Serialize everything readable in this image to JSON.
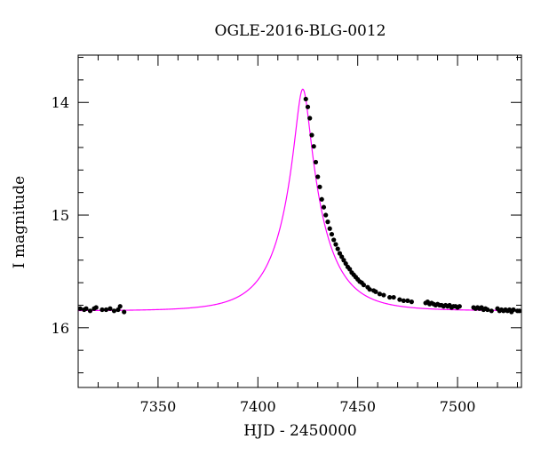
{
  "chart_data": {
    "type": "scatter",
    "title": "OGLE-2016-BLG-0012",
    "xlabel": "HJD - 2450000",
    "ylabel": "I magnitude",
    "xlim": [
      7310,
      7532
    ],
    "ylim": [
      16.53,
      13.58
    ],
    "y_inverted": true,
    "x_major_ticks": [
      7350,
      7400,
      7450,
      7500
    ],
    "x_minor_step": 10,
    "y_major_ticks": [
      14,
      15,
      16
    ],
    "y_minor_step": 0.2,
    "grid": false,
    "point_color": "#000000",
    "model_color": "#ff00ff",
    "model": {
      "t0": 7422.5,
      "tE": 21.0,
      "u0": 0.165,
      "baseline_mag": 15.85,
      "range": [
        7310,
        7532
      ]
    },
    "points": [
      [
        7311,
        15.83
      ],
      [
        7313,
        15.84
      ],
      [
        7314,
        15.83
      ],
      [
        7316,
        15.85
      ],
      [
        7318,
        15.83
      ],
      [
        7319,
        15.82
      ],
      [
        7322,
        15.84
      ],
      [
        7324,
        15.84
      ],
      [
        7326,
        15.83
      ],
      [
        7328,
        15.85
      ],
      [
        7330,
        15.84
      ],
      [
        7331,
        15.81
      ],
      [
        7333,
        15.86
      ],
      [
        7424,
        13.97
      ],
      [
        7425,
        14.04
      ],
      [
        7426,
        14.14
      ],
      [
        7427,
        14.29
      ],
      [
        7428,
        14.39
      ],
      [
        7429,
        14.53
      ],
      [
        7430,
        14.66
      ],
      [
        7431,
        14.75
      ],
      [
        7432,
        14.86
      ],
      [
        7433,
        14.93
      ],
      [
        7434,
        15.0
      ],
      [
        7435,
        15.06
      ],
      [
        7436,
        15.12
      ],
      [
        7437,
        15.17
      ],
      [
        7438,
        15.22
      ],
      [
        7439,
        15.26
      ],
      [
        7440,
        15.3
      ],
      [
        7441,
        15.34
      ],
      [
        7442,
        15.37
      ],
      [
        7443,
        15.4
      ],
      [
        7444,
        15.43
      ],
      [
        7445,
        15.46
      ],
      [
        7446,
        15.48
      ],
      [
        7447,
        15.51
      ],
      [
        7448,
        15.53
      ],
      [
        7449,
        15.55
      ],
      [
        7450,
        15.57
      ],
      [
        7451,
        15.59
      ],
      [
        7452,
        15.6
      ],
      [
        7453,
        15.62
      ],
      [
        7455,
        15.64
      ],
      [
        7456,
        15.66
      ],
      [
        7458,
        15.67
      ],
      [
        7459,
        15.68
      ],
      [
        7461,
        15.7
      ],
      [
        7463,
        15.71
      ],
      [
        7466,
        15.73
      ],
      [
        7468,
        15.73
      ],
      [
        7471,
        15.75
      ],
      [
        7473,
        15.76
      ],
      [
        7475,
        15.76
      ],
      [
        7477,
        15.77
      ],
      [
        7484,
        15.78
      ],
      [
        7485,
        15.77
      ],
      [
        7486,
        15.79
      ],
      [
        7487,
        15.78
      ],
      [
        7488,
        15.79
      ],
      [
        7489,
        15.8
      ],
      [
        7490,
        15.79
      ],
      [
        7491,
        15.8
      ],
      [
        7492,
        15.8
      ],
      [
        7493,
        15.81
      ],
      [
        7494,
        15.8
      ],
      [
        7495,
        15.81
      ],
      [
        7496,
        15.8
      ],
      [
        7497,
        15.82
      ],
      [
        7498,
        15.81
      ],
      [
        7499,
        15.81
      ],
      [
        7500,
        15.82
      ],
      [
        7501,
        15.81
      ],
      [
        7508,
        15.82
      ],
      [
        7509,
        15.83
      ],
      [
        7510,
        15.82
      ],
      [
        7511,
        15.83
      ],
      [
        7512,
        15.82
      ],
      [
        7513,
        15.84
      ],
      [
        7514,
        15.83
      ],
      [
        7515,
        15.84
      ],
      [
        7517,
        15.85
      ],
      [
        7520,
        15.83
      ],
      [
        7521,
        15.85
      ],
      [
        7522,
        15.84
      ],
      [
        7523,
        15.85
      ],
      [
        7524,
        15.84
      ],
      [
        7525,
        15.85
      ],
      [
        7526,
        15.84
      ],
      [
        7527,
        15.86
      ],
      [
        7528,
        15.84
      ],
      [
        7530,
        15.85
      ],
      [
        7531,
        15.85
      ]
    ]
  }
}
